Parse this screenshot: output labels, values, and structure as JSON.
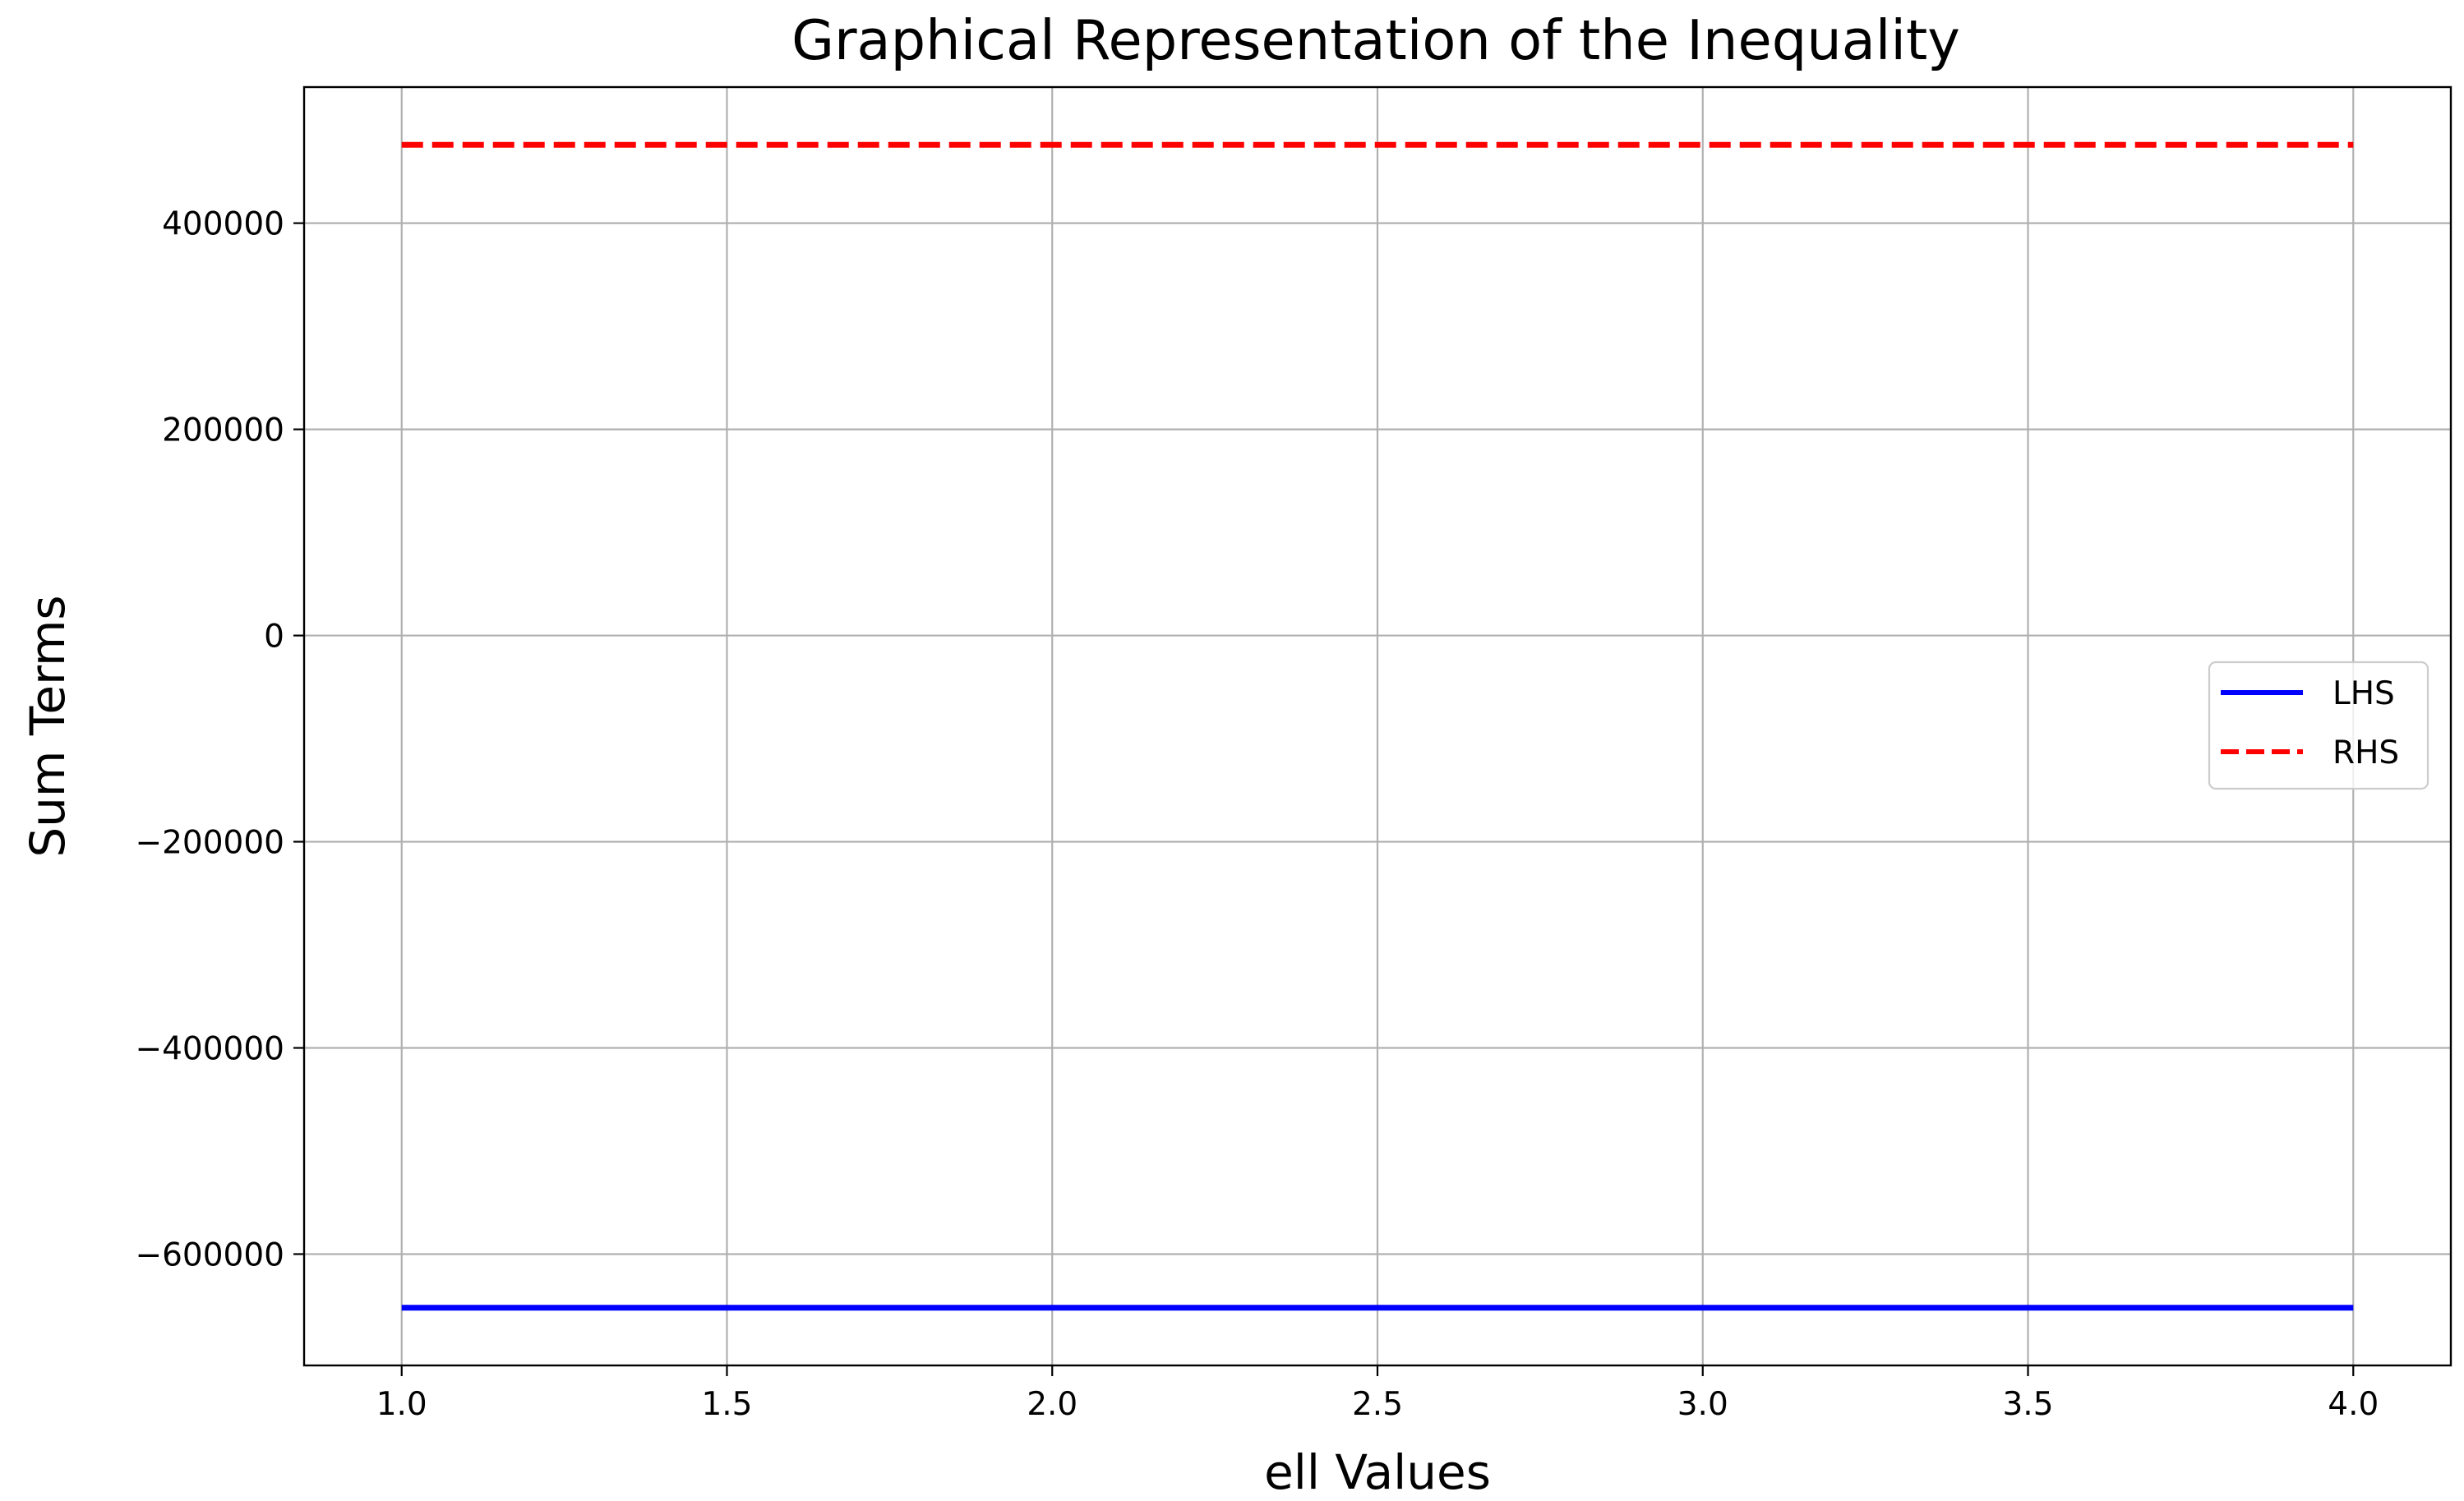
{
  "chart_data": {
    "type": "line",
    "title": "Graphical Representation of the Inequality",
    "xlabel": "ell Values",
    "ylabel": "Sum Terms",
    "xlim": [
      0.85,
      4.15
    ],
    "ylim": [
      -708000,
      532000
    ],
    "xticks": [
      1.0,
      1.5,
      2.0,
      2.5,
      3.0,
      3.5,
      4.0
    ],
    "xtick_labels": [
      "1.0",
      "1.5",
      "2.0",
      "2.5",
      "3.0",
      "3.5",
      "4.0"
    ],
    "yticks": [
      -600000,
      -400000,
      -200000,
      0,
      200000,
      400000
    ],
    "ytick_labels": [
      "−600000",
      "−400000",
      "−200000",
      "0",
      "200000",
      "400000"
    ],
    "grid": true,
    "legend_position": "center-right",
    "series": [
      {
        "name": "LHS",
        "color": "#0000ff",
        "style": "solid",
        "x": [
          1.0,
          4.0
        ],
        "y": [
          -652000,
          -652000
        ]
      },
      {
        "name": "RHS",
        "color": "#ff0000",
        "style": "dashed",
        "x": [
          1.0,
          4.0
        ],
        "y": [
          476000,
          476000
        ]
      }
    ]
  }
}
